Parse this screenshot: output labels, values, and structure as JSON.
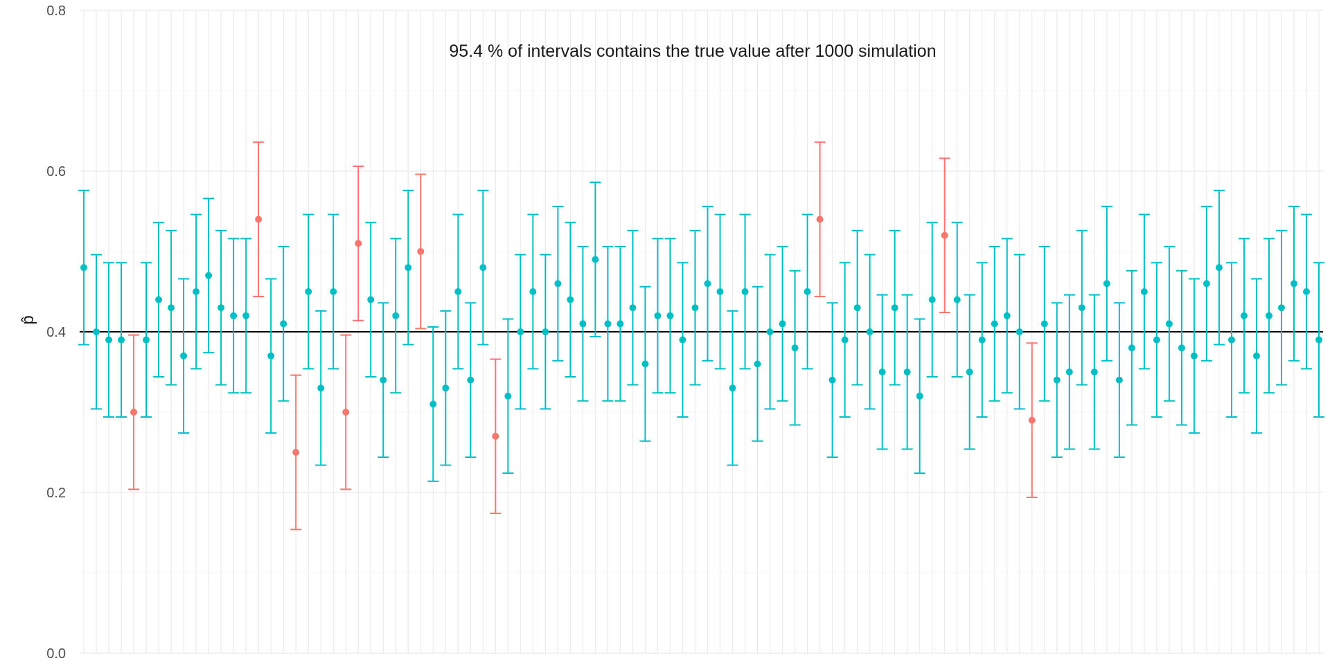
{
  "chart_data": {
    "type": "scatter",
    "title": "95.4 % of intervals contains the true value after 1000 simulation",
    "xlabel": "",
    "ylabel": "p̂",
    "ylim": [
      0,
      0.8
    ],
    "yticks": [
      0,
      0.2,
      0.4,
      0.6,
      0.8
    ],
    "ytick_labels": [
      "0.0",
      "0.2",
      "0.4",
      "0.6",
      "0.8"
    ],
    "grid": true,
    "true_value": 0.4,
    "margin_of_error": 0.096,
    "colors": {
      "contains": "#00bfc4",
      "misses": "#f8766d",
      "reference_line": "#000000"
    },
    "estimates": [
      0.48,
      0.4,
      0.39,
      0.39,
      0.3,
      0.39,
      0.44,
      0.43,
      0.37,
      0.45,
      0.47,
      0.43,
      0.42,
      0.42,
      0.54,
      0.37,
      0.41,
      0.25,
      0.45,
      0.33,
      0.45,
      0.3,
      0.51,
      0.44,
      0.34,
      0.42,
      0.48,
      0.5,
      0.31,
      0.33,
      0.45,
      0.34,
      0.48,
      0.27,
      0.32,
      0.4,
      0.45,
      0.4,
      0.46,
      0.44,
      0.41,
      0.49,
      0.41,
      0.41,
      0.43,
      0.36,
      0.42,
      0.42,
      0.39,
      0.43,
      0.46,
      0.45,
      0.33,
      0.45,
      0.36,
      0.4,
      0.41,
      0.38,
      0.45,
      0.54,
      0.34,
      0.39,
      0.43,
      0.4,
      0.35,
      0.43,
      0.35,
      0.32,
      0.44,
      0.52,
      0.44,
      0.35,
      0.39,
      0.41,
      0.42,
      0.4,
      0.29,
      0.41,
      0.34,
      0.35,
      0.43,
      0.35,
      0.46,
      0.34,
      0.38,
      0.45,
      0.39,
      0.41,
      0.38,
      0.37,
      0.46,
      0.48,
      0.39,
      0.42,
      0.37,
      0.42,
      0.43,
      0.46,
      0.45,
      0.39
    ]
  }
}
